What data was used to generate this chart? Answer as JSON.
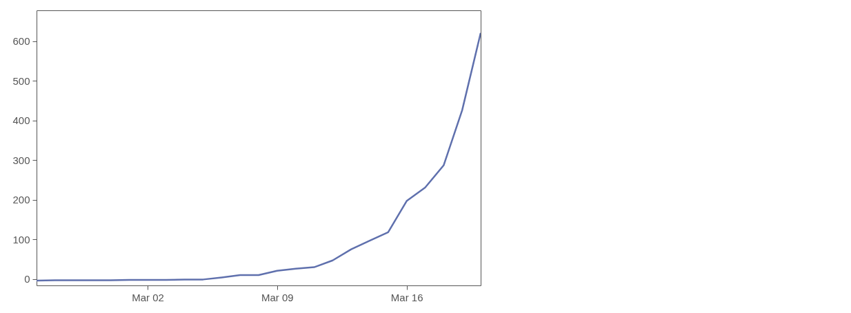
{
  "chart_data": {
    "type": "line",
    "x": [
      "--02-25",
      "--02-26",
      "--02-27",
      "--02-28",
      "--02-29",
      "--03-01",
      "--03-02",
      "--03-03",
      "--03-04",
      "--03-05",
      "--03-06",
      "--03-07",
      "--03-08",
      "--03-09",
      "--03-10",
      "--03-11",
      "--03-12",
      "--03-13",
      "--03-14",
      "--03-15",
      "--03-16",
      "--03-17",
      "--03-18",
      "--03-19",
      "--03-20"
    ],
    "series": [
      {
        "color": "#5f70ad",
        "values": [
          -4,
          -3,
          -3,
          -3,
          -3,
          -2,
          -2,
          -2,
          -1,
          -1,
          4,
          10,
          10,
          21,
          26,
          30,
          47,
          75,
          97,
          118,
          197,
          231,
          287,
          426,
          621
        ]
      }
    ],
    "xlim": [
      "--02-25",
      "--03-20"
    ],
    "xticks": [
      {
        "value": "--03-02",
        "label": "Mar 02"
      },
      {
        "value": "--03-09",
        "label": "Mar 09"
      },
      {
        "value": "--03-16",
        "label": "Mar 16"
      }
    ],
    "ylim": [
      -16,
      678
    ],
    "yticks": [
      0,
      100,
      200,
      300,
      400,
      500,
      600
    ],
    "grid": false,
    "marker": "none",
    "line_style": "solid"
  }
}
